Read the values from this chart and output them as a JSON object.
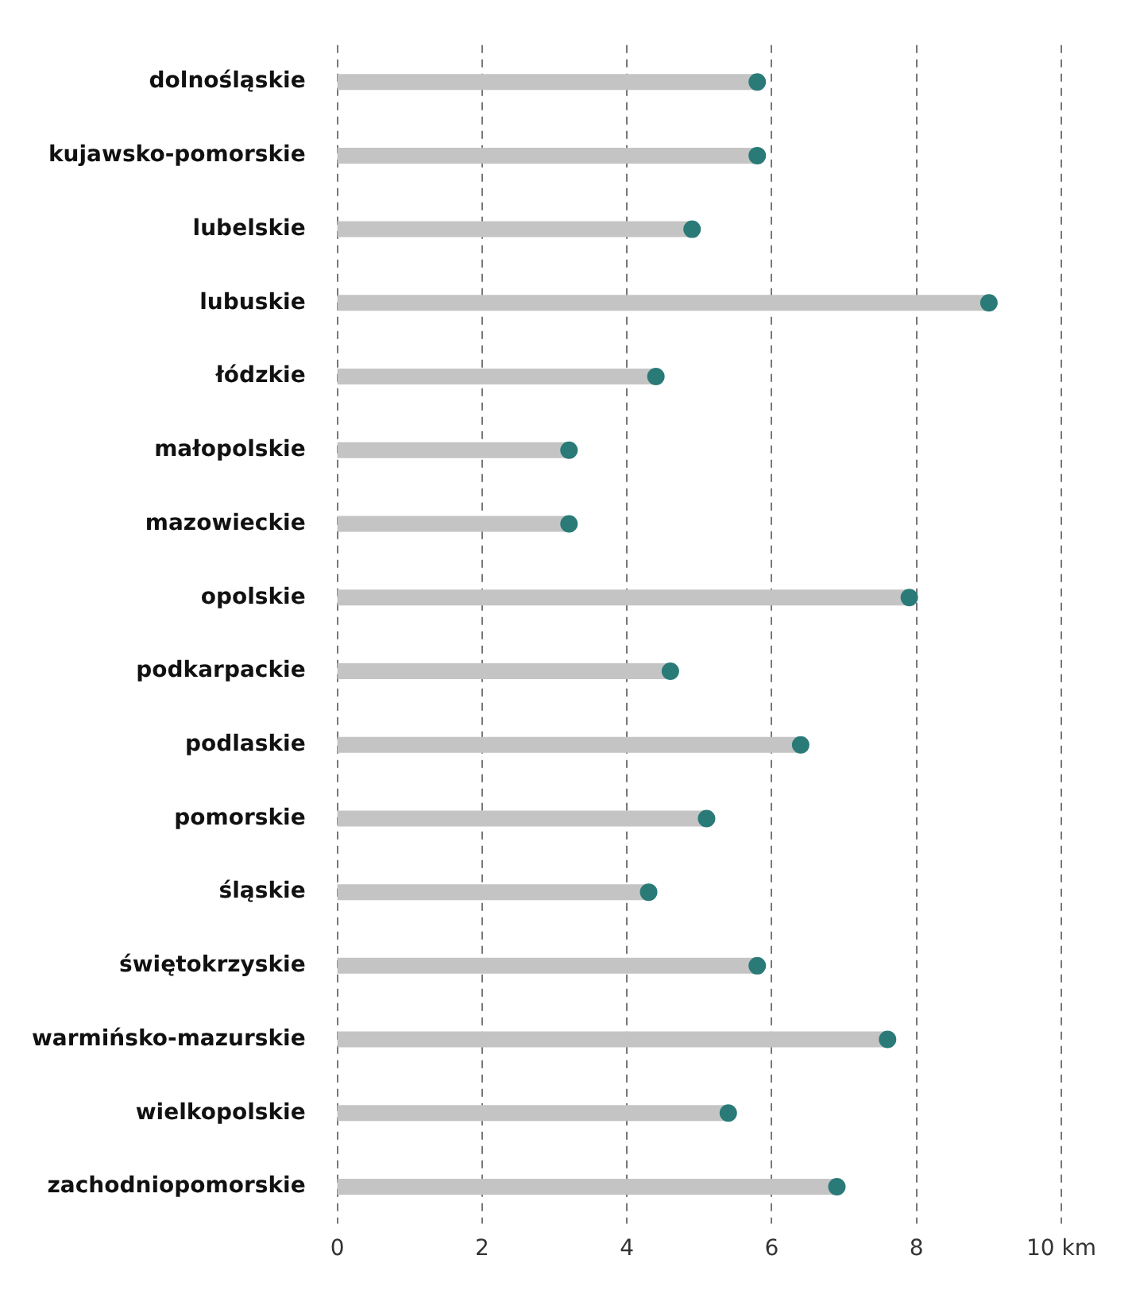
{
  "chart_data": {
    "type": "lollipop",
    "orientation": "horizontal",
    "categories": [
      "dolnośląskie",
      "kujawsko-pomorskie",
      "lubelskie",
      "lubuskie",
      "łódzkie",
      "małopolskie",
      "mazowieckie",
      "opolskie",
      "podkarpackie",
      "podlaskie",
      "pomorskie",
      "śląskie",
      "świętokrzyskie",
      "warmińsko-mazurskie",
      "wielkopolskie",
      "zachodniopomorskie"
    ],
    "series": [
      {
        "color": "#2a7b78",
        "values": [
          5.8,
          5.8,
          4.9,
          9.0,
          4.4,
          3.2,
          3.2,
          7.9,
          4.6,
          6.4,
          5.1,
          4.3,
          5.8,
          7.6,
          5.4,
          6.9
        ]
      }
    ],
    "xlim": [
      0,
      10
    ],
    "xticks": [
      0,
      2,
      4,
      6,
      8,
      {
        "value": 10,
        "label": "10 km"
      }
    ],
    "grid": "x",
    "marker": "circle"
  }
}
